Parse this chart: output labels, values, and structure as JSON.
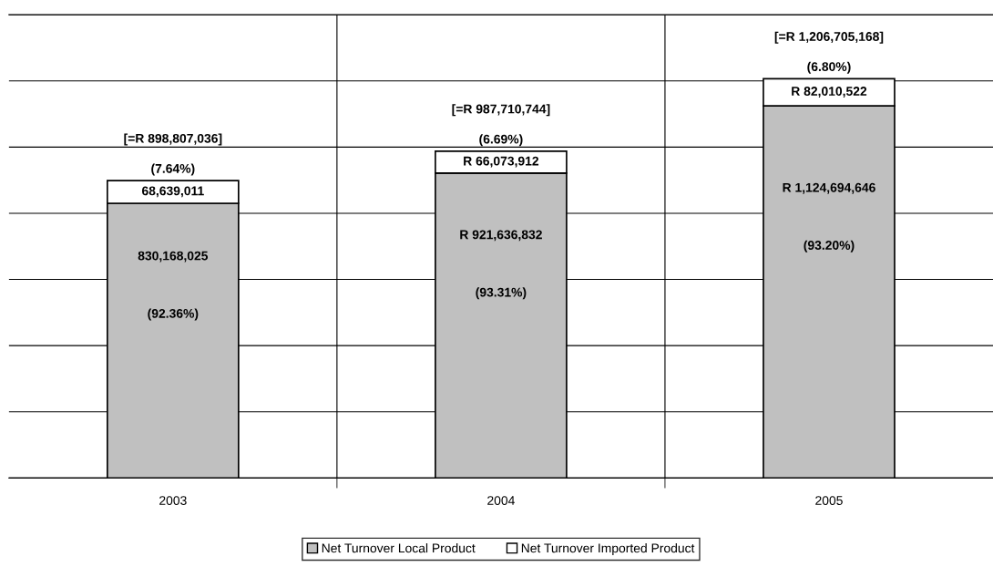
{
  "chart_data": {
    "type": "bar",
    "stacked": true,
    "categories": [
      "2003",
      "2004",
      "2005"
    ],
    "series": [
      {
        "name": "Net Turnover Local Product",
        "color": "#c0c0c0",
        "values": [
          830168025,
          921636832,
          1124694646
        ],
        "value_labels": [
          "830,168,025\n(92.36%)",
          "R 921,636,832\n(93.31%)",
          "R 1,124,694,646\n(93.20%)"
        ]
      },
      {
        "name": "Net Turnover Imported Product",
        "color": "#ffffff",
        "values": [
          68639011,
          66073912,
          82010522
        ],
        "value_labels": [
          "68,639,011",
          "R 66,073,912",
          "R 82,010,522"
        ]
      }
    ],
    "totals": [
      "[=R 898,807,036]\n(7.64%)",
      "[=R 987,710,744]\n(6.69%)",
      "[=R 1,206,705,168]\n(6.80%)"
    ],
    "ylim": [
      0,
      1400000000
    ],
    "yticks": [
      {
        "value": 0,
        "label": null
      },
      {
        "value": 200000000,
        "label": null
      },
      {
        "value": 400000000,
        "label": null
      },
      {
        "value": 600000000,
        "label": null
      },
      {
        "value": 800000000,
        "label": null
      },
      {
        "value": 1000000000,
        "label": null
      },
      {
        "value": 1200000000,
        "label": null
      },
      {
        "value": 1400000000,
        "label": null
      }
    ],
    "tick_labels": "x",
    "grid": true,
    "legend": "bottom"
  }
}
